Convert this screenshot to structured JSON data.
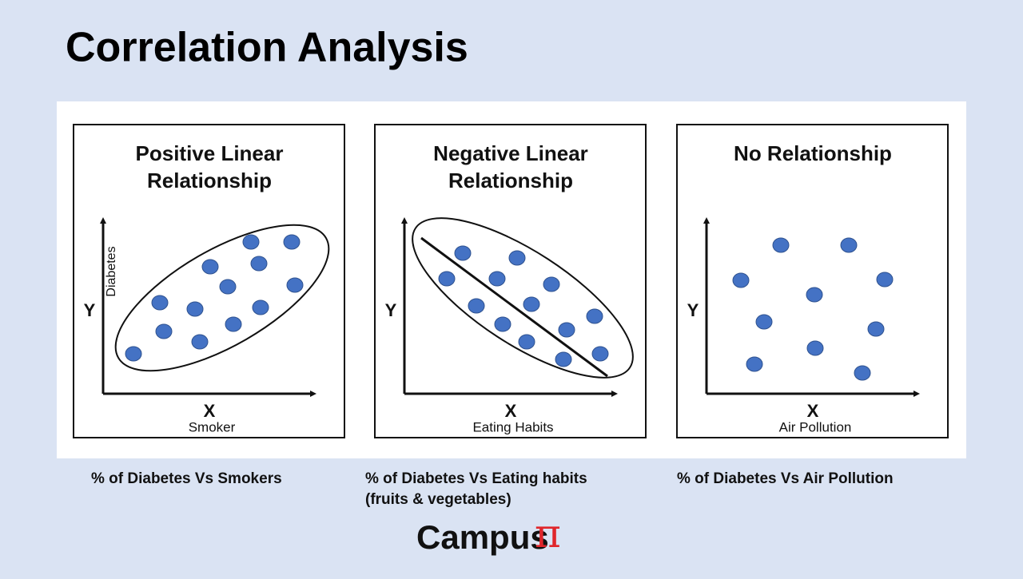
{
  "header": {
    "title": "Correlation Analysis"
  },
  "panels": [
    {
      "title_lines": [
        "Positive Linear",
        "Relationship"
      ],
      "y_axis": "Y",
      "y_label": "Diabetes",
      "x_axis": "X",
      "x_label": "Smoker",
      "caption_lines": [
        "% of Diabetes Vs Smokers"
      ]
    },
    {
      "title_lines": [
        "Negative Linear",
        "Relationship"
      ],
      "y_axis": "Y",
      "x_axis": "X",
      "x_label": "Eating Habits",
      "caption_lines": [
        "% of Diabetes Vs Eating habits",
        "(fruits & vegetables)"
      ]
    },
    {
      "title_lines": [
        "No Relationship"
      ],
      "y_axis": "Y",
      "x_axis": "X",
      "x_label": "Air Pollution",
      "caption_lines": [
        "% of Diabetes Vs Air Pollution"
      ]
    }
  ],
  "logo": {
    "text": "Campus",
    "symbol": "π"
  }
}
